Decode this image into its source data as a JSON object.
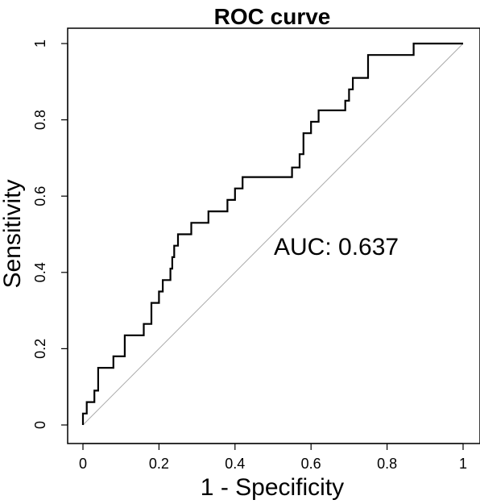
{
  "chart_data": {
    "type": "line",
    "title": "ROC curve",
    "xlabel": "1 - Specificity",
    "ylabel": "Sensitivity",
    "xlim": [
      0,
      1
    ],
    "ylim": [
      0,
      1
    ],
    "grid": false,
    "xticks": [
      0,
      0.2,
      0.4,
      0.6,
      0.8,
      1
    ],
    "xtick_labels": [
      "0",
      "0.2",
      "0.4",
      "0.6",
      "0.8",
      "1"
    ],
    "yticks": [
      0,
      0.2,
      0.4,
      0.6,
      0.8,
      1
    ],
    "ytick_labels": [
      "0",
      "0.2",
      "0.4",
      "0.6",
      "0.8",
      "1"
    ],
    "annotation": "AUC: 0.637",
    "diagonal_color": "#aaaaaa",
    "line_color": "#000000",
    "series": [
      {
        "x": [
          0,
          0,
          0.01,
          0.01,
          0.03,
          0.03,
          0.04,
          0.04,
          0.08,
          0.08,
          0.11,
          0.11,
          0.16,
          0.16,
          0.18,
          0.18,
          0.2,
          0.2,
          0.21,
          0.21,
          0.23,
          0.23,
          0.235,
          0.235,
          0.24,
          0.24,
          0.25,
          0.25,
          0.27,
          0.27,
          0.285,
          0.285,
          0.33,
          0.33,
          0.38,
          0.38,
          0.4,
          0.4,
          0.42,
          0.42,
          0.44,
          0.44,
          0.55,
          0.55,
          0.57,
          0.57,
          0.58,
          0.58,
          0.59,
          0.59,
          0.6,
          0.6,
          0.62,
          0.62,
          0.64,
          0.64,
          0.69,
          0.69,
          0.7,
          0.7,
          0.71,
          0.71,
          0.75,
          0.75,
          0.87,
          0.87,
          1
        ],
        "y": [
          0,
          0.03,
          0.03,
          0.06,
          0.06,
          0.09,
          0.09,
          0.15,
          0.15,
          0.18,
          0.18,
          0.235,
          0.235,
          0.265,
          0.265,
          0.32,
          0.32,
          0.35,
          0.35,
          0.38,
          0.38,
          0.41,
          0.41,
          0.44,
          0.44,
          0.47,
          0.47,
          0.5,
          0.5,
          0.5,
          0.5,
          0.53,
          0.53,
          0.56,
          0.56,
          0.59,
          0.59,
          0.62,
          0.62,
          0.65,
          0.65,
          0.65,
          0.65,
          0.675,
          0.675,
          0.71,
          0.71,
          0.765,
          0.765,
          0.765,
          0.765,
          0.795,
          0.795,
          0.825,
          0.825,
          0.825,
          0.825,
          0.85,
          0.85,
          0.88,
          0.88,
          0.91,
          0.91,
          0.97,
          0.97,
          1,
          1
        ]
      }
    ]
  }
}
